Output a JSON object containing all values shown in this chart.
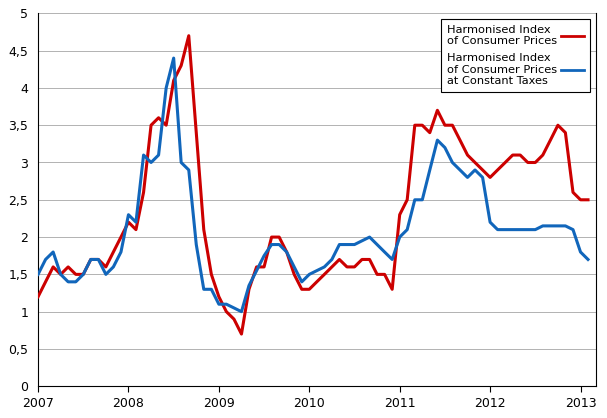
{
  "hicp_color": "#CC0000",
  "hicp_ct_color": "#1166BB",
  "line_width": 2.2,
  "ylim": [
    0,
    5
  ],
  "yticks": [
    0,
    0.5,
    1.0,
    1.5,
    2.0,
    2.5,
    3.0,
    3.5,
    4.0,
    4.5,
    5.0
  ],
  "ytick_labels": [
    "0",
    "0,5",
    "1",
    "1,5",
    "2",
    "2,5",
    "3",
    "3,5",
    "4",
    "4,5",
    "5"
  ],
  "xticks": [
    2007,
    2008,
    2009,
    2010,
    2011,
    2012,
    2013
  ],
  "legend1_label": "Harmonised Index\nof Consumer Prices",
  "legend2_label": "Harmonised Index\nof Consumer Prices\nat Constant Taxes",
  "background_color": "#ffffff",
  "grid_color": "#000000",
  "grid_alpha": 0.3,
  "grid_linewidth": 0.7,
  "hicp_dates": [
    2007.0,
    2007.083,
    2007.167,
    2007.25,
    2007.333,
    2007.417,
    2007.5,
    2007.583,
    2007.667,
    2007.75,
    2007.833,
    2007.917,
    2008.0,
    2008.083,
    2008.167,
    2008.25,
    2008.333,
    2008.417,
    2008.5,
    2008.583,
    2008.667,
    2008.75,
    2008.833,
    2008.917,
    2009.0,
    2009.083,
    2009.167,
    2009.25,
    2009.333,
    2009.417,
    2009.5,
    2009.583,
    2009.667,
    2009.75,
    2009.833,
    2009.917,
    2010.0,
    2010.083,
    2010.167,
    2010.25,
    2010.333,
    2010.417,
    2010.5,
    2010.583,
    2010.667,
    2010.75,
    2010.833,
    2010.917,
    2011.0,
    2011.083,
    2011.167,
    2011.25,
    2011.333,
    2011.417,
    2011.5,
    2011.583,
    2011.667,
    2011.75,
    2011.833,
    2011.917,
    2012.0,
    2012.083,
    2012.167,
    2012.25,
    2012.333,
    2012.417,
    2012.5,
    2012.583,
    2012.667,
    2012.75,
    2012.833,
    2012.917,
    2013.0,
    2013.083
  ],
  "hicp_values": [
    1.2,
    1.4,
    1.6,
    1.5,
    1.6,
    1.5,
    1.5,
    1.7,
    1.7,
    1.6,
    1.8,
    2.0,
    2.2,
    2.1,
    2.6,
    3.5,
    3.6,
    3.5,
    4.1,
    4.3,
    4.7,
    3.4,
    2.1,
    1.5,
    1.2,
    1.0,
    0.9,
    0.7,
    1.3,
    1.6,
    1.6,
    2.0,
    2.0,
    1.8,
    1.5,
    1.3,
    1.3,
    1.4,
    1.5,
    1.6,
    1.7,
    1.6,
    1.6,
    1.7,
    1.7,
    1.5,
    1.5,
    1.3,
    2.3,
    2.5,
    3.5,
    3.5,
    3.4,
    3.7,
    3.5,
    3.5,
    3.3,
    3.1,
    3.0,
    2.9,
    2.8,
    2.9,
    3.0,
    3.1,
    3.1,
    3.0,
    3.0,
    3.1,
    3.3,
    3.5,
    3.4,
    2.6,
    2.5,
    2.5
  ],
  "hicp_ct_dates": [
    2007.0,
    2007.083,
    2007.167,
    2007.25,
    2007.333,
    2007.417,
    2007.5,
    2007.583,
    2007.667,
    2007.75,
    2007.833,
    2007.917,
    2008.0,
    2008.083,
    2008.167,
    2008.25,
    2008.333,
    2008.417,
    2008.5,
    2008.583,
    2008.667,
    2008.75,
    2008.833,
    2008.917,
    2009.0,
    2009.083,
    2009.167,
    2009.25,
    2009.333,
    2009.417,
    2009.5,
    2009.583,
    2009.667,
    2009.75,
    2009.833,
    2009.917,
    2010.0,
    2010.083,
    2010.167,
    2010.25,
    2010.333,
    2010.417,
    2010.5,
    2010.583,
    2010.667,
    2010.75,
    2010.833,
    2010.917,
    2011.0,
    2011.083,
    2011.167,
    2011.25,
    2011.333,
    2011.417,
    2011.5,
    2011.583,
    2011.667,
    2011.75,
    2011.833,
    2011.917,
    2012.0,
    2012.083,
    2012.167,
    2012.25,
    2012.333,
    2012.417,
    2012.5,
    2012.583,
    2012.667,
    2012.75,
    2012.833,
    2012.917,
    2013.0,
    2013.083
  ],
  "hicp_ct_values": [
    1.5,
    1.7,
    1.8,
    1.5,
    1.4,
    1.4,
    1.5,
    1.7,
    1.7,
    1.5,
    1.6,
    1.8,
    2.3,
    2.2,
    3.1,
    3.0,
    3.1,
    4.0,
    4.4,
    3.0,
    2.9,
    1.9,
    1.3,
    1.3,
    1.1,
    1.1,
    1.05,
    1.0,
    1.35,
    1.55,
    1.75,
    1.9,
    1.9,
    1.8,
    1.6,
    1.4,
    1.5,
    1.55,
    1.6,
    1.7,
    1.9,
    1.9,
    1.9,
    1.95,
    2.0,
    1.9,
    1.8,
    1.7,
    2.0,
    2.1,
    2.5,
    2.5,
    2.9,
    3.3,
    3.2,
    3.0,
    2.9,
    2.8,
    2.9,
    2.8,
    2.2,
    2.1,
    2.1,
    2.1,
    2.1,
    2.1,
    2.1,
    2.15,
    2.15,
    2.15,
    2.15,
    2.1,
    1.8,
    1.7
  ]
}
